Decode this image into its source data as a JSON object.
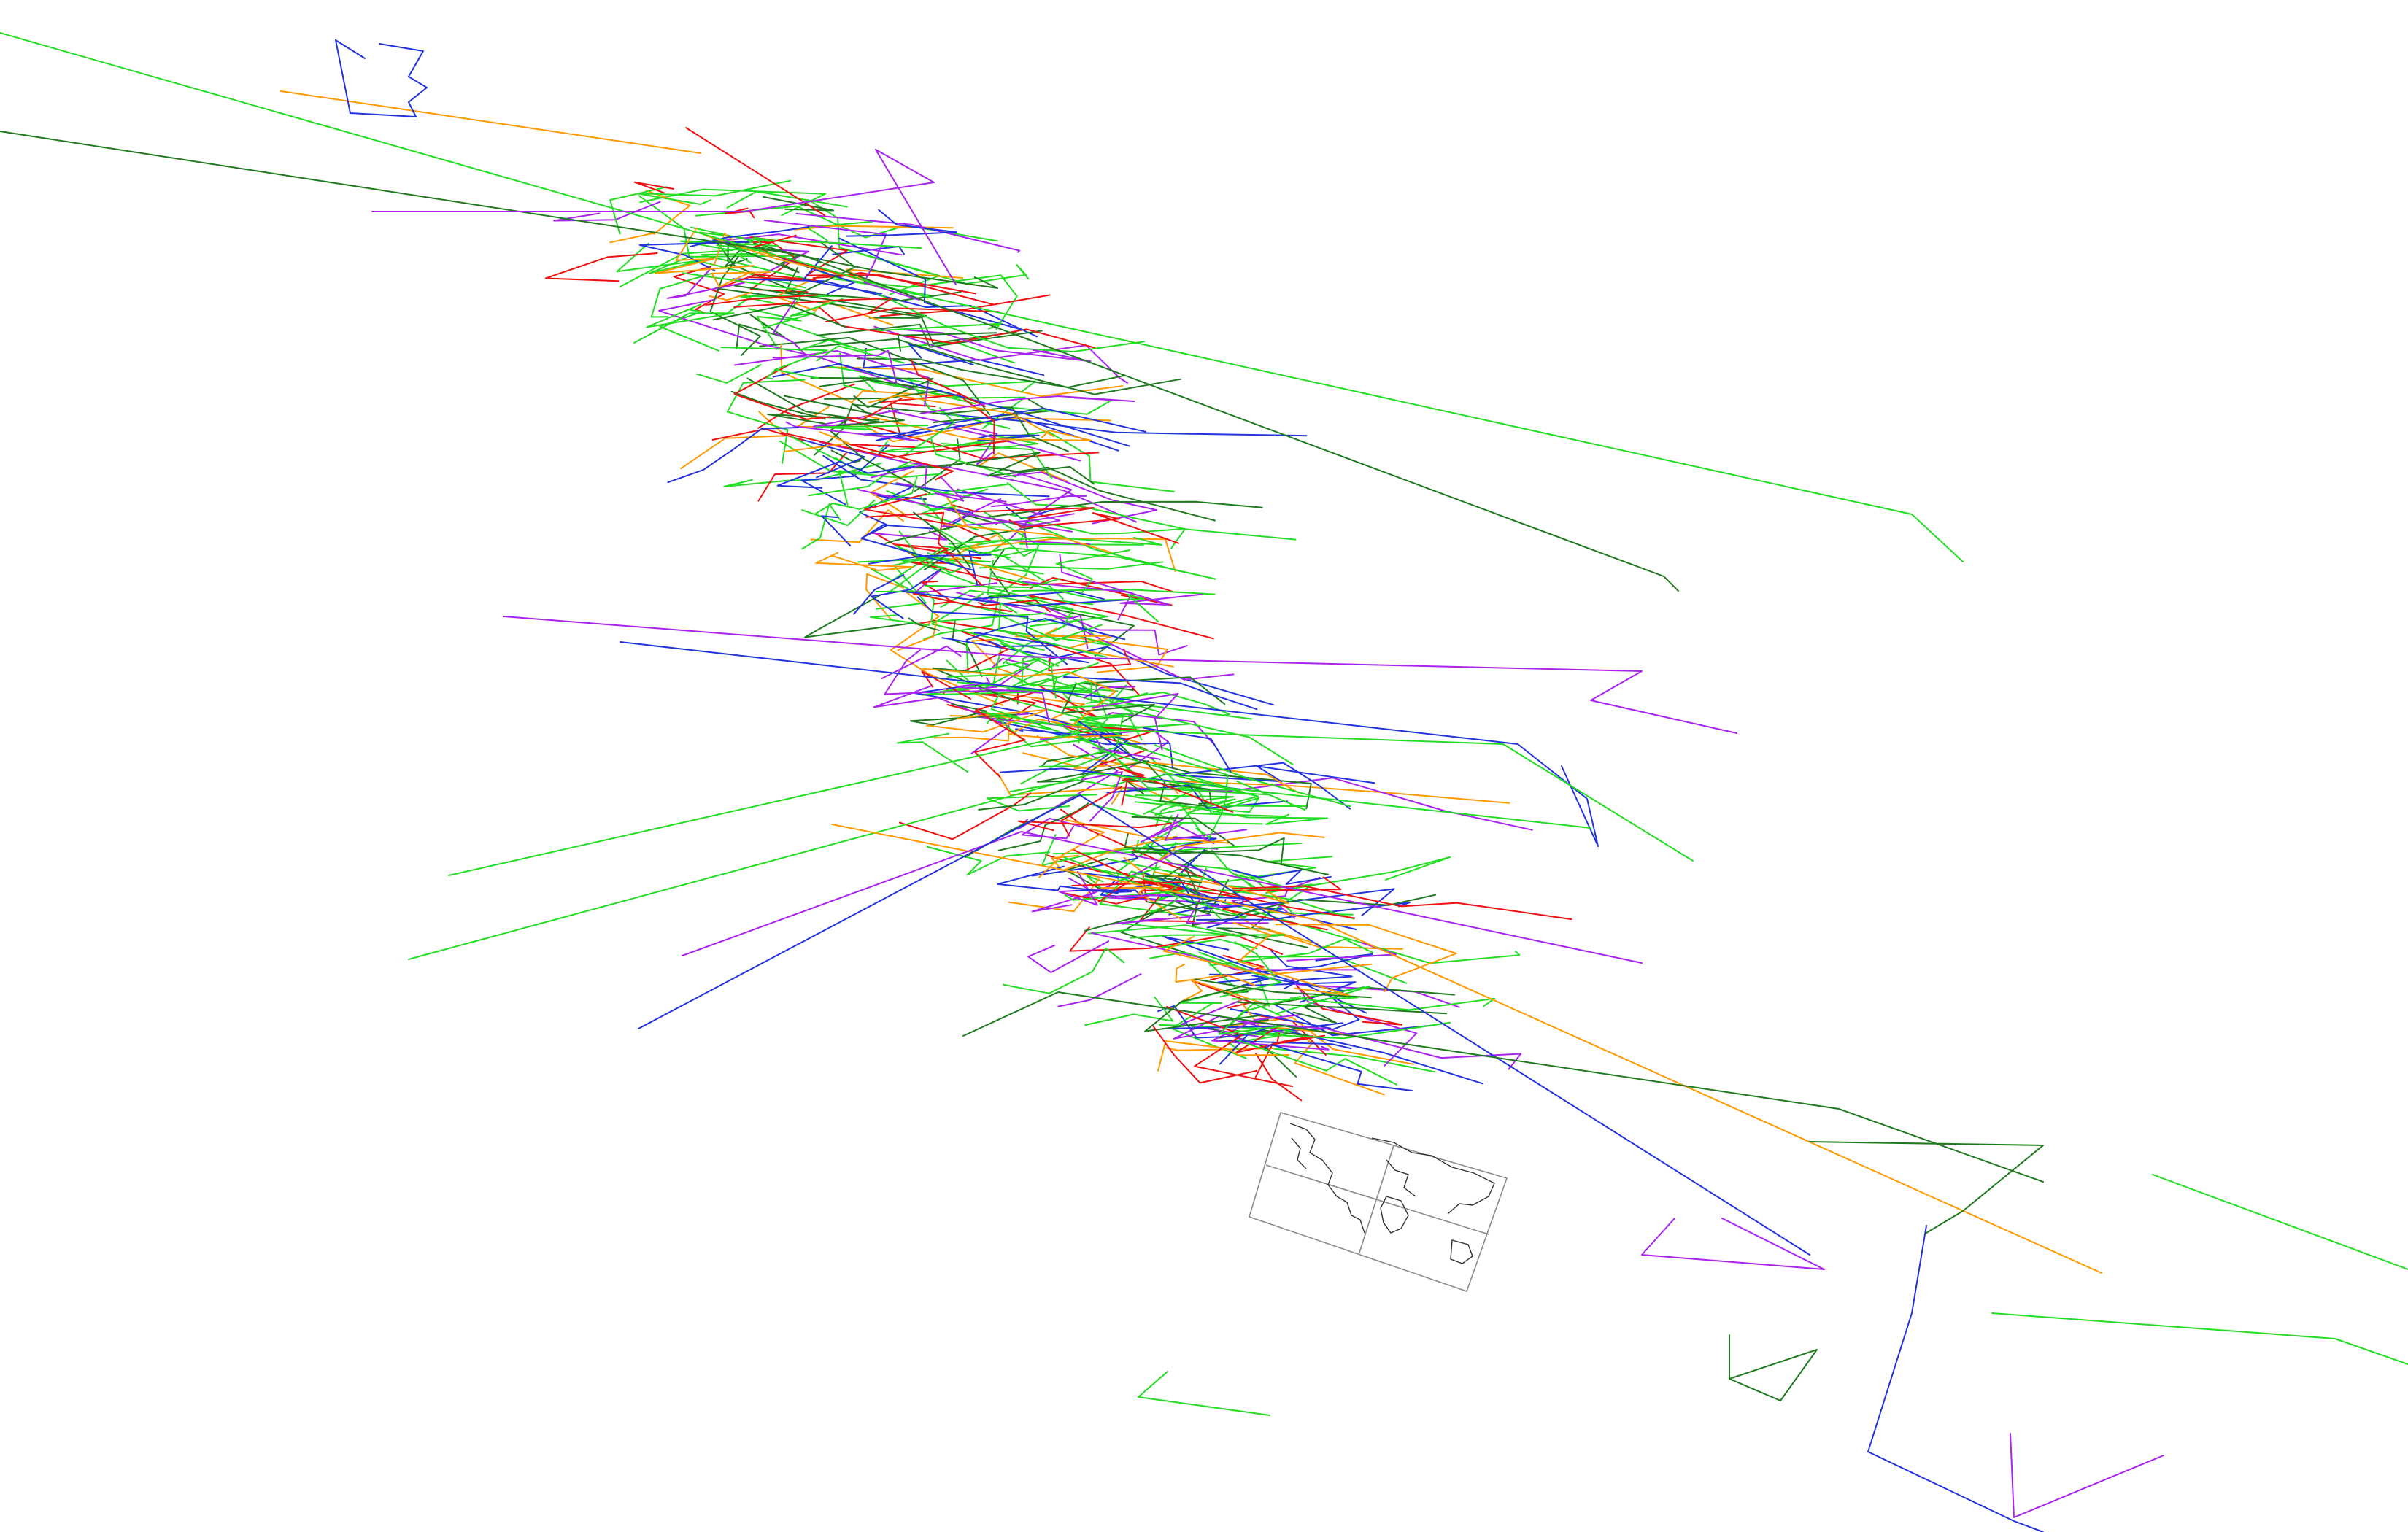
{
  "map": {
    "projection": "oblique",
    "background": "#ffffff",
    "track_colors": {
      "green": "#22dd22",
      "dark_green": "#1f7a1f",
      "blue": "#2233dd",
      "violet": "#aa22ee",
      "red": "#ee1111",
      "orange": "#ff9900"
    },
    "inset": {
      "kind": "world-map",
      "graticule_color": "#8a8a8a",
      "coastline_color": "#333333"
    },
    "legend": null,
    "title": ""
  }
}
